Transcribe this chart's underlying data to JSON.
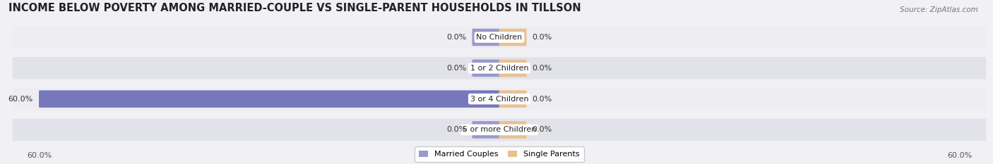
{
  "title": "INCOME BELOW POVERTY AMONG MARRIED-COUPLE VS SINGLE-PARENT HOUSEHOLDS IN TILLSON",
  "source": "Source: ZipAtlas.com",
  "categories": [
    "No Children",
    "1 or 2 Children",
    "3 or 4 Children",
    "5 or more Children"
  ],
  "married_values": [
    0.0,
    0.0,
    60.0,
    0.0
  ],
  "single_values": [
    0.0,
    0.0,
    0.0,
    0.0
  ],
  "married_color": "#9999cc",
  "married_color_full": "#7777bb",
  "single_color": "#e8c090",
  "row_bg_light": "#ededf2",
  "row_bg_dark": "#e2e2ea",
  "fig_bg": "#f0f0f5",
  "axis_limit": 60.0,
  "stub_size": 3.5,
  "label_fontsize": 8.0,
  "title_fontsize": 10.5,
  "source_fontsize": 7.5,
  "legend_married": "Married Couples",
  "legend_single": "Single Parents",
  "figsize": [
    14.06,
    2.33
  ],
  "dpi": 100
}
